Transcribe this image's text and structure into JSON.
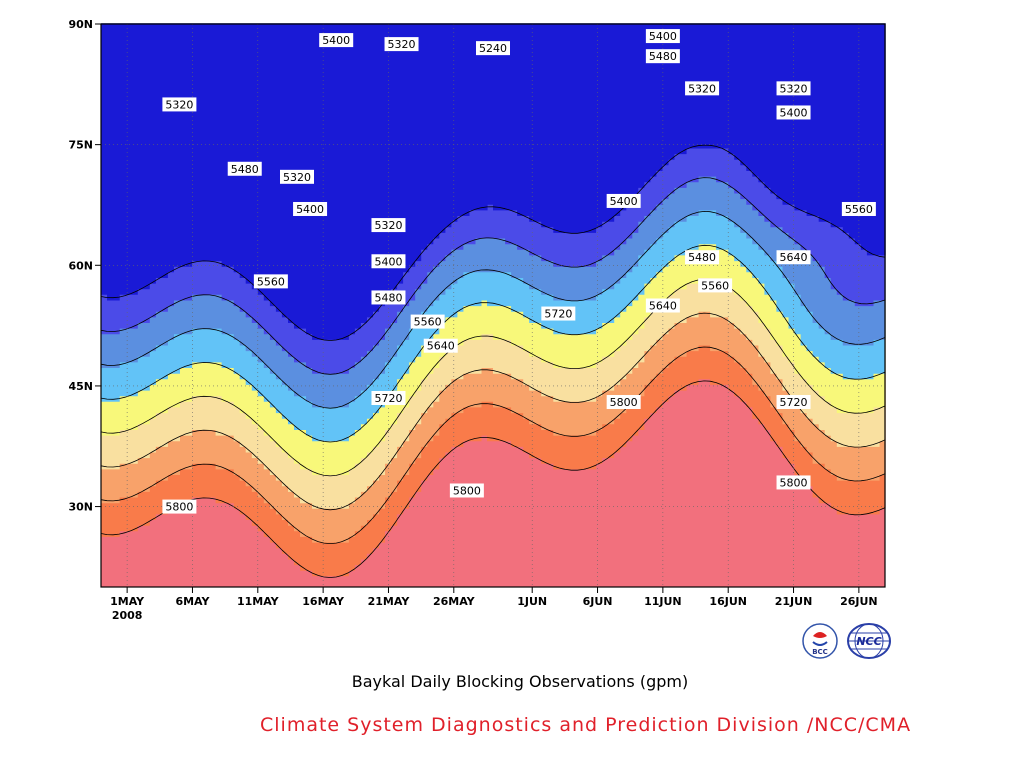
{
  "chart_data": {
    "type": "heatmap",
    "title": "Baykal Daily Blocking Observations (gpm)",
    "x_tick_labels": [
      "1MAY",
      "6MAY",
      "11MAY",
      "16MAY",
      "21MAY",
      "26MAY",
      "1JUN",
      "6JUN",
      "11JUN",
      "16JUN",
      "21JUN",
      "26JUN"
    ],
    "x_tick_days": [
      0,
      5,
      10,
      15,
      20,
      25,
      31,
      36,
      41,
      46,
      51,
      56
    ],
    "x_year_label": "2008",
    "xlim_days": [
      -2,
      58
    ],
    "y_ticks": [
      30,
      45,
      60,
      75,
      90
    ],
    "y_tick_labels": [
      "30N",
      "45N",
      "60N",
      "75N",
      "90N"
    ],
    "ylim": [
      20,
      90
    ],
    "grid": true,
    "contour_levels": [
      5240,
      5320,
      5400,
      5480,
      5560,
      5640,
      5720,
      5800
    ],
    "contour_labels": [
      {
        "day": 4,
        "lat": 80,
        "value": 5320
      },
      {
        "day": 9,
        "lat": 72,
        "value": 5480
      },
      {
        "day": 13,
        "lat": 71,
        "value": 5320
      },
      {
        "day": 14,
        "lat": 67,
        "value": 5400
      },
      {
        "day": 11,
        "lat": 58,
        "value": 5560
      },
      {
        "day": 16,
        "lat": 88,
        "value": 5400
      },
      {
        "day": 21,
        "lat": 87.5,
        "value": 5320
      },
      {
        "day": 28,
        "lat": 87,
        "value": 5240
      },
      {
        "day": 20,
        "lat": 65,
        "value": 5320
      },
      {
        "day": 20,
        "lat": 60.5,
        "value": 5400
      },
      {
        "day": 20,
        "lat": 56,
        "value": 5480
      },
      {
        "day": 23,
        "lat": 53,
        "value": 5560
      },
      {
        "day": 24,
        "lat": 50,
        "value": 5640
      },
      {
        "day": 20,
        "lat": 43.5,
        "value": 5720
      },
      {
        "day": 33,
        "lat": 54,
        "value": 5720
      },
      {
        "day": 26,
        "lat": 32,
        "value": 5800
      },
      {
        "day": 4,
        "lat": 30,
        "value": 5800
      },
      {
        "day": 38,
        "lat": 68,
        "value": 5400
      },
      {
        "day": 41,
        "lat": 88.5,
        "value": 5400
      },
      {
        "day": 41,
        "lat": 86,
        "value": 5480
      },
      {
        "day": 44,
        "lat": 82,
        "value": 5320
      },
      {
        "day": 51,
        "lat": 82,
        "value": 5320
      },
      {
        "day": 51,
        "lat": 79,
        "value": 5400
      },
      {
        "day": 44,
        "lat": 61,
        "value": 5480
      },
      {
        "day": 45,
        "lat": 57.5,
        "value": 5560
      },
      {
        "day": 41,
        "lat": 55,
        "value": 5640
      },
      {
        "day": 51,
        "lat": 61,
        "value": 5640
      },
      {
        "day": 56,
        "lat": 67,
        "value": 5560
      },
      {
        "day": 38,
        "lat": 43,
        "value": 5800
      },
      {
        "day": 51,
        "lat": 43,
        "value": 5720
      },
      {
        "day": 51,
        "lat": 33,
        "value": 5800
      }
    ],
    "fill_colors": {
      "lt5240": "#1a1ad6",
      "5240-5320": "#4b4be8",
      "5320-5400": "#5b8fe0",
      "5400-5480": "#62c3f7",
      "5480-5560": "#f8f87a",
      "5560-5640": "#f9e0a0",
      "5640-5720": "#f8a26a",
      "5720-5800": "#f97b4a",
      "gt5800": "#f2707d"
    }
  },
  "caption": "Baykal Daily Blocking Observations (gpm)",
  "credit": "Climate System Diagnostics and Prediction Division /NCC/CMA",
  "logos": [
    {
      "name": "bcc-logo",
      "text": "BCC"
    },
    {
      "name": "ncc-logo",
      "text": "NCC"
    }
  ]
}
